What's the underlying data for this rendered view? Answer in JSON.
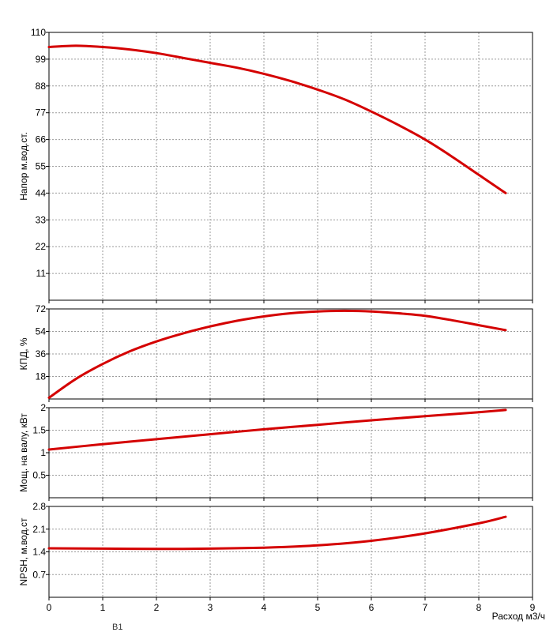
{
  "chart_data": [
    {
      "type": "line",
      "ylabel": "Напор м.вод.ст.",
      "xlim": [
        0,
        9
      ],
      "ylim": [
        0,
        110
      ],
      "yticks": [
        "11",
        "22",
        "33",
        "44",
        "55",
        "66",
        "77",
        "88",
        "99",
        "110"
      ],
      "grid": true,
      "series": [
        {
          "color": "#d40000",
          "x": [
            0,
            0.5,
            1,
            1.5,
            2,
            2.5,
            3,
            3.5,
            4,
            4.5,
            5,
            5.5,
            6,
            6.5,
            7,
            7.5,
            8,
            8.5
          ],
          "y": [
            104,
            104.5,
            104,
            103,
            101.5,
            99.5,
            97.5,
            95.5,
            93,
            90,
            86.5,
            82.5,
            77.5,
            72,
            66,
            59,
            51.5,
            44
          ]
        }
      ]
    },
    {
      "type": "line",
      "ylabel": "КПД, %",
      "xlim": [
        0,
        9
      ],
      "ylim": [
        0,
        72
      ],
      "yticks": [
        "18",
        "36",
        "54",
        "72"
      ],
      "grid": true,
      "series": [
        {
          "color": "#d40000",
          "x": [
            0,
            0.5,
            1,
            1.5,
            2,
            2.5,
            3,
            3.5,
            4,
            4.5,
            5,
            5.5,
            6,
            6.5,
            7,
            7.5,
            8,
            8.5
          ],
          "y": [
            1,
            16,
            28,
            38,
            46,
            52.5,
            58,
            62.5,
            66,
            68.5,
            70,
            70.5,
            70,
            68.5,
            66.5,
            63,
            59,
            55
          ]
        }
      ]
    },
    {
      "type": "line",
      "ylabel": "Мощ. на валу, кВт",
      "xlim": [
        0,
        9
      ],
      "ylim": [
        0,
        2
      ],
      "yticks": [
        "0.5",
        "1",
        "1.5",
        "2"
      ],
      "grid": true,
      "series": [
        {
          "color": "#d40000",
          "x": [
            0,
            1,
            2,
            3,
            4,
            5,
            6,
            7,
            8,
            8.5
          ],
          "y": [
            1.07,
            1.19,
            1.3,
            1.41,
            1.52,
            1.62,
            1.72,
            1.81,
            1.9,
            1.95
          ]
        }
      ]
    },
    {
      "type": "line",
      "ylabel": "NPSH, м.вод.ст",
      "xlabel": "Расход м3/ч",
      "xlim": [
        0,
        9
      ],
      "ylim": [
        0,
        2.8
      ],
      "yticks": [
        "0.7",
        "1.4",
        "2.1",
        "2.8"
      ],
      "xticks": [
        "0",
        "1",
        "2",
        "3",
        "4",
        "5",
        "6",
        "7",
        "8",
        "9"
      ],
      "grid": true,
      "series": [
        {
          "color": "#d40000",
          "x": [
            0,
            1,
            2,
            3,
            4,
            5,
            6,
            7,
            8,
            8.5
          ],
          "y": [
            1.51,
            1.5,
            1.49,
            1.5,
            1.53,
            1.6,
            1.74,
            1.97,
            2.28,
            2.48
          ]
        }
      ]
    }
  ],
  "footer_text": "В1"
}
